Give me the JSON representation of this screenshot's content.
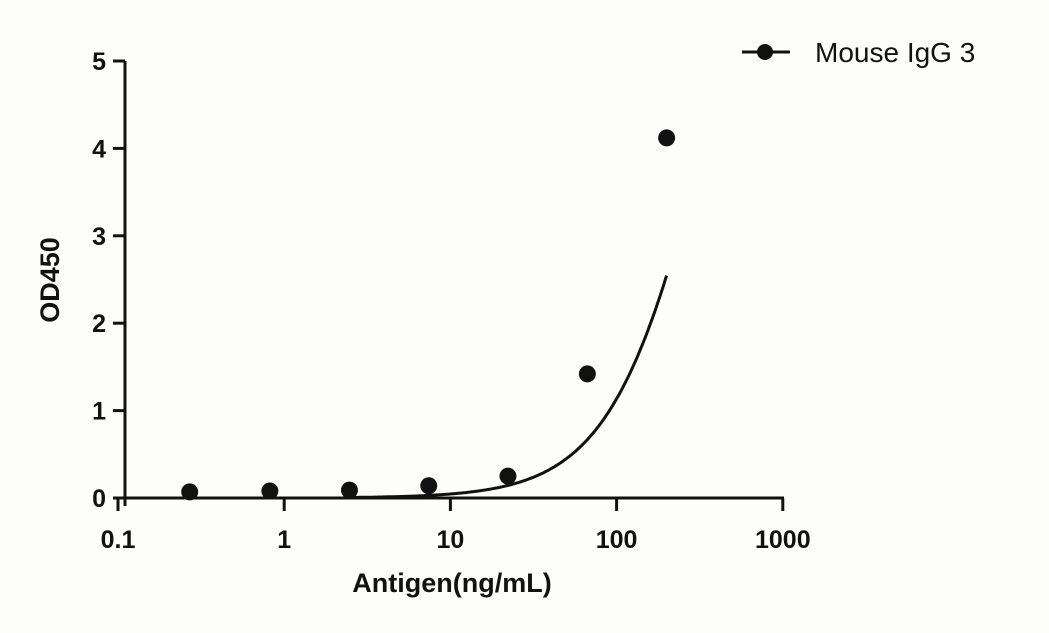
{
  "chart_data": {
    "type": "line",
    "title": "",
    "xlabel": "Antigen(ng/mL)",
    "ylabel": "OD450",
    "xscale": "log",
    "xlim": [
      0.1,
      1000
    ],
    "ylim": [
      0,
      5
    ],
    "x_ticks": [
      "0.1",
      "1",
      "10",
      "100",
      "1000"
    ],
    "y_ticks": [
      "0",
      "1",
      "2",
      "3",
      "4",
      "5"
    ],
    "grid": false,
    "legend_position": "top-right",
    "series": [
      {
        "name": "Mouse IgG 3",
        "marker": "circle",
        "fit": "sigmoidal curve",
        "x": [
          0.27,
          0.82,
          2.47,
          7.41,
          22.2,
          66.7,
          200
        ],
        "y": [
          0.07,
          0.08,
          0.09,
          0.14,
          0.25,
          1.42,
          4.12
        ]
      }
    ]
  },
  "legend": {
    "label": "Mouse IgG 3"
  },
  "axes": {
    "x_title": "Antigen(ng/mL)",
    "y_title": "OD450",
    "x_ticks": [
      "0.1",
      "1",
      "10",
      "100",
      "1000"
    ],
    "y_ticks": [
      "0",
      "1",
      "2",
      "3",
      "4",
      "5"
    ]
  }
}
